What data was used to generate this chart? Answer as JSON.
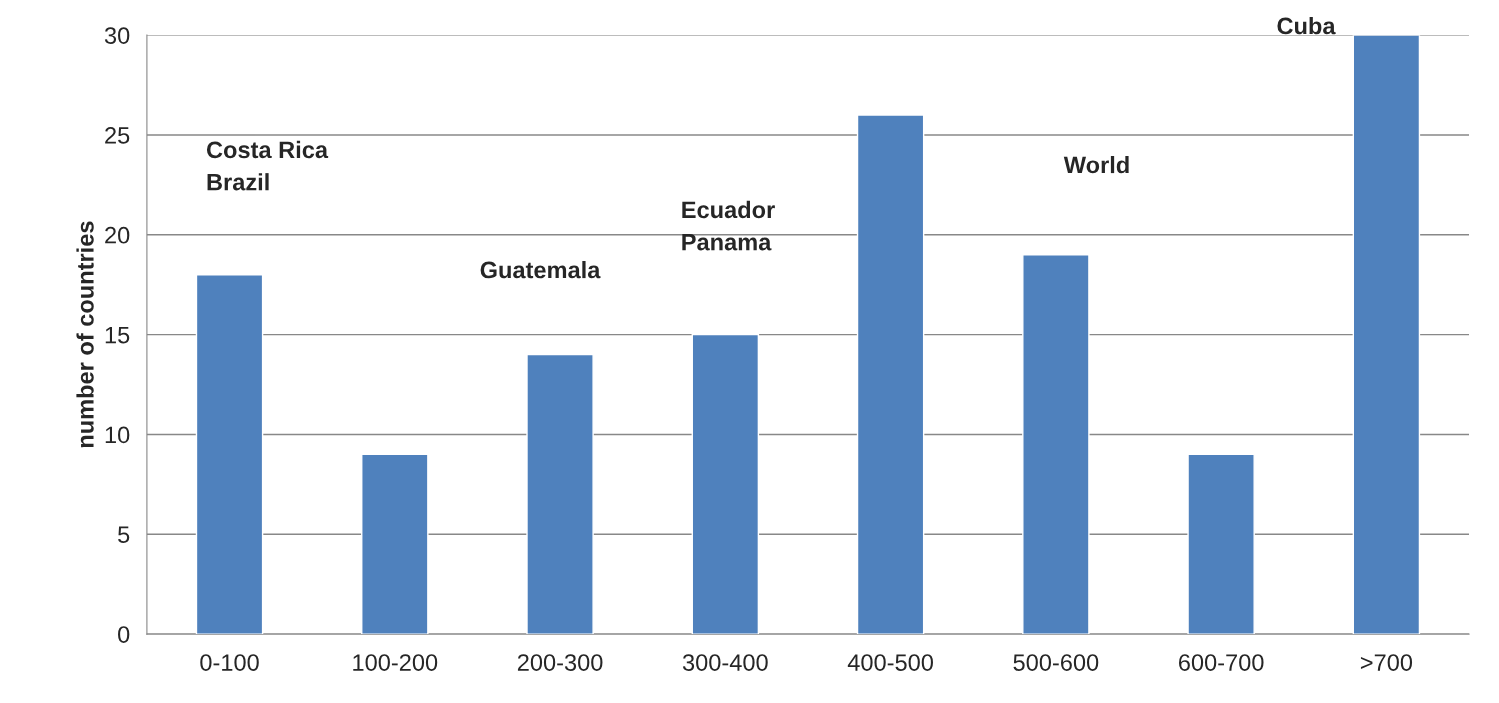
{
  "chart_data": {
    "type": "bar",
    "ylabel": "number of countries",
    "categories": [
      "0-100",
      "100-200",
      "200-300",
      "300-400",
      "400-500",
      "500-600",
      "600-700",
      ">700"
    ],
    "values": [
      18,
      9,
      14,
      15,
      26,
      19,
      9,
      30
    ],
    "color": "#4f81bd",
    "ylim": [
      0,
      30
    ],
    "yticks": [
      0,
      5,
      10,
      15,
      20,
      25,
      30
    ],
    "grid": "y",
    "annotations": [
      "Costa Rica\nBrazil",
      "Guatemala",
      "Ecuador\nPanama",
      "World",
      "Cuba"
    ]
  }
}
